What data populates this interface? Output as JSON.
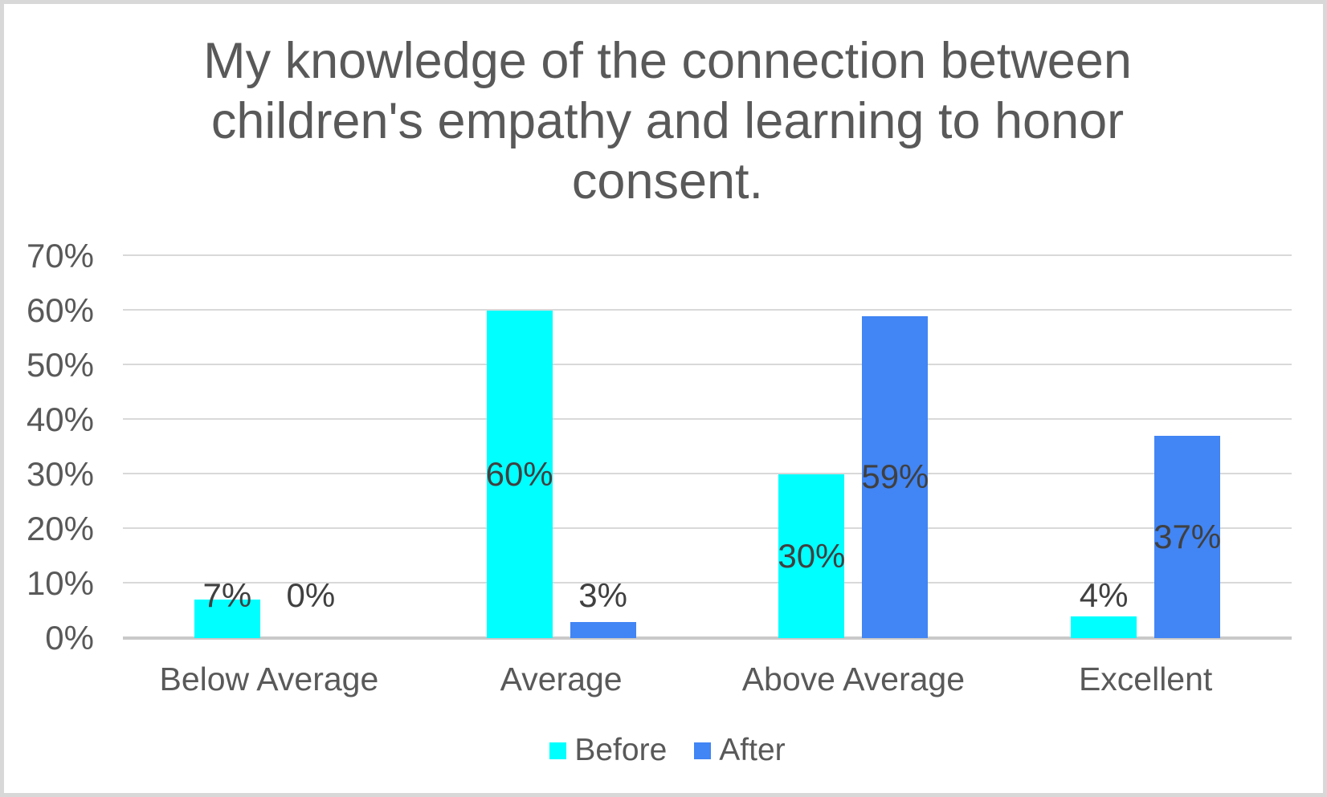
{
  "chart_data": {
    "type": "bar",
    "title": "My knowledge of the connection between children's empathy and learning to honor consent.",
    "categories": [
      "Below Average",
      "Average",
      "Above Average",
      "Excellent"
    ],
    "series": [
      {
        "name": "Before",
        "color": "#00ffff",
        "values": [
          7,
          60,
          30,
          4
        ]
      },
      {
        "name": "After",
        "color": "#4285f4",
        "values": [
          0,
          3,
          59,
          37
        ]
      }
    ],
    "value_labels": [
      [
        "7%",
        "60%",
        "30%",
        "4%"
      ],
      [
        "0%",
        "3%",
        "59%",
        "37%"
      ]
    ],
    "xlabel": "",
    "ylabel": "",
    "ylim": [
      0,
      70
    ],
    "ytick_labels": [
      "0%",
      "10%",
      "20%",
      "30%",
      "40%",
      "50%",
      "60%",
      "70%"
    ],
    "grid": true,
    "legend_position": "bottom",
    "legend": [
      "Before",
      "After"
    ]
  },
  "colors": {
    "before_bar": "#00ffff",
    "after_bar": "#4285f4",
    "gridline": "#d9d9d9",
    "axis_line": "#c9c9c9",
    "title_text": "#595959",
    "axis_text": "#595959",
    "data_label_text": "#404040",
    "frame_border": "#d8d8d8",
    "background": "#ffffff"
  }
}
